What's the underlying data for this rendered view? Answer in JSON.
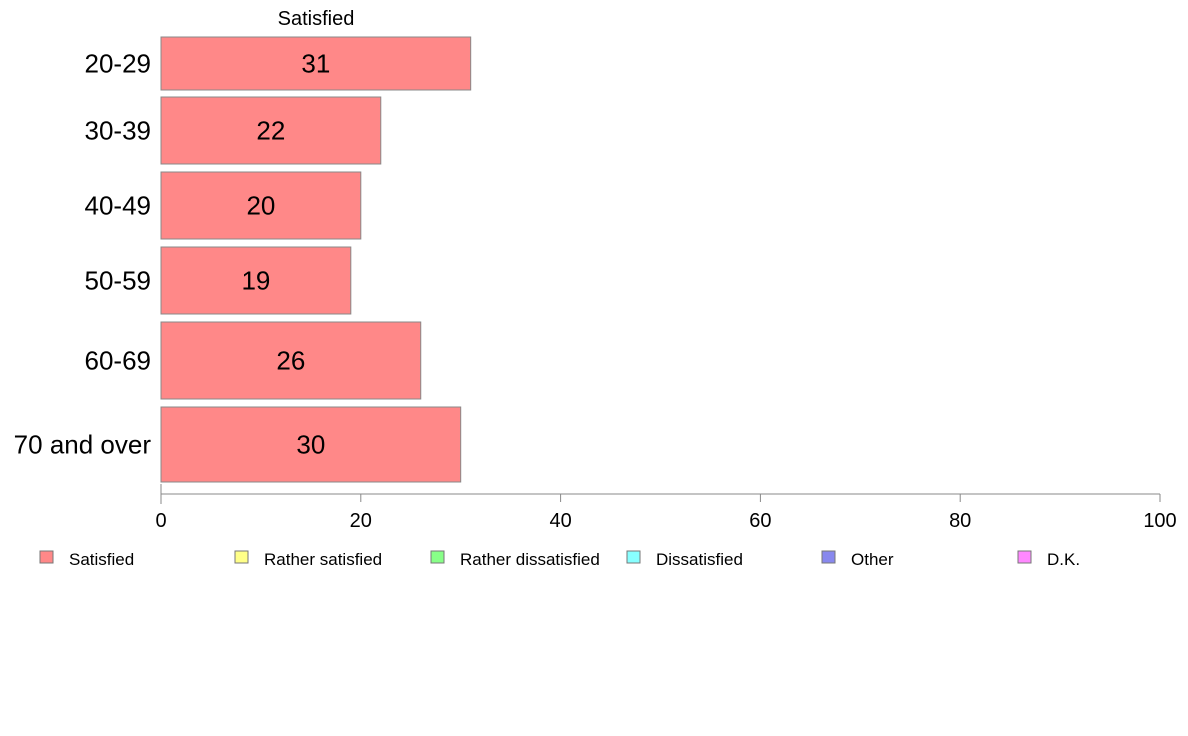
{
  "chart_data": {
    "type": "bar",
    "orientation": "horizontal",
    "stacked": true,
    "categories": [
      "20-29",
      "30-39",
      "40-49",
      "50-59",
      "60-69",
      "70 and over"
    ],
    "series": [
      {
        "name": "Satisfied",
        "values": [
          31,
          22,
          20,
          19,
          26,
          30
        ]
      }
    ],
    "shown_series_label": "Satisfied",
    "xlim": [
      0,
      100
    ],
    "xticks": [
      0,
      20,
      40,
      60,
      80,
      100
    ],
    "grid": false,
    "legend": {
      "placement": "bottom",
      "entries": [
        {
          "label": "Satisfied",
          "color": "#ff8888"
        },
        {
          "label": "Rather satisfied",
          "color": "#ffff88"
        },
        {
          "label": "Rather dissatisfied",
          "color": "#88ff88"
        },
        {
          "label": "Dissatisfied",
          "color": "#88ffff"
        },
        {
          "label": "Other",
          "color": "#8888ee"
        },
        {
          "label": "D.K.",
          "color": "#ff88ff"
        }
      ]
    },
    "colors": {
      "bar_fill": "#ff8888",
      "bar_stroke": "#888888",
      "axis": "#888888"
    }
  }
}
